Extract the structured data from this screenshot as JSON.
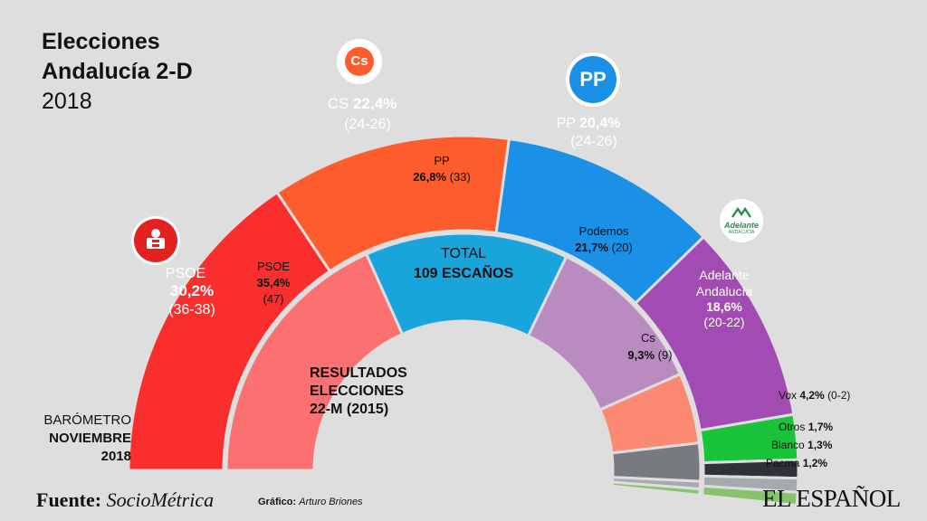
{
  "title": {
    "line1": "Elecciones",
    "line2": "Andalucía 2-D",
    "line3": "2018"
  },
  "barometer": {
    "line1": "BARÓMETRO",
    "line2": "NOVIEMBRE",
    "line3": "2018"
  },
  "total": {
    "line1": "TOTAL",
    "line2": "109 ESCAÑOS"
  },
  "results_label": {
    "line1": "RESULTADOS",
    "line2": "ELECCIONES",
    "line3": "22-M (2015)"
  },
  "footer": {
    "source_label": "Fuente:",
    "source_name": "SocioMétrica",
    "credit_label": "Gráfico:",
    "credit_name": "Arturo Briones",
    "brand": "EL ESPAÑOL"
  },
  "logos": {
    "cs": "Cs",
    "pp": "PP",
    "adelante_1": "Adelante",
    "adelante_2": "ANDALUCÍA"
  },
  "colors": {
    "psoe": "#fb2e2e",
    "psoe_old": "#fb7070",
    "cs": "#fd5c2c",
    "cs_old": "#fc8a72",
    "pp": "#1a90e6",
    "pp_old": "#19a5db",
    "adelante": "#a24bb3",
    "podemos_old": "#b98bc1",
    "vox": "#19c33a",
    "otros": "#2f3237",
    "blanco": "#a6aaaf",
    "pacma": "#86c36a",
    "others_old": "#777a7e"
  },
  "chart_data": [
    {
      "type": "pie",
      "title": "BARÓMETRO NOVIEMBRE 2018",
      "slices": [
        {
          "name": "PSOE",
          "value": 30.2,
          "seats": "(36-38)"
        },
        {
          "name": "CS",
          "value": 22.4,
          "seats": "(24-26)"
        },
        {
          "name": "PP",
          "value": 20.4,
          "seats": "(24-26)"
        },
        {
          "name": "Adelante Andalucía",
          "value": 18.6,
          "seats": "(20-22)"
        },
        {
          "name": "Vox",
          "value": 4.2,
          "seats": "(0-2)"
        },
        {
          "name": "Otros",
          "value": 1.7
        },
        {
          "name": "Blanco",
          "value": 1.3
        },
        {
          "name": "Pacma",
          "value": 1.2
        }
      ]
    },
    {
      "type": "pie",
      "title": "RESULTADOS ELECCIONES 22-M (2015)",
      "slices": [
        {
          "name": "PSOE",
          "value": 35.4,
          "seats": "(47)"
        },
        {
          "name": "PP",
          "value": 26.8,
          "seats": "(33)"
        },
        {
          "name": "Podemos",
          "value": 21.7,
          "seats": "(20)"
        },
        {
          "name": "Cs",
          "value": 9.3,
          "seats": "(9)"
        },
        {
          "name": "Otros",
          "value": 5.0
        },
        {
          "name": "Blanco",
          "value": 1.0
        },
        {
          "name": "Pacma",
          "value": 0.8
        }
      ]
    }
  ]
}
